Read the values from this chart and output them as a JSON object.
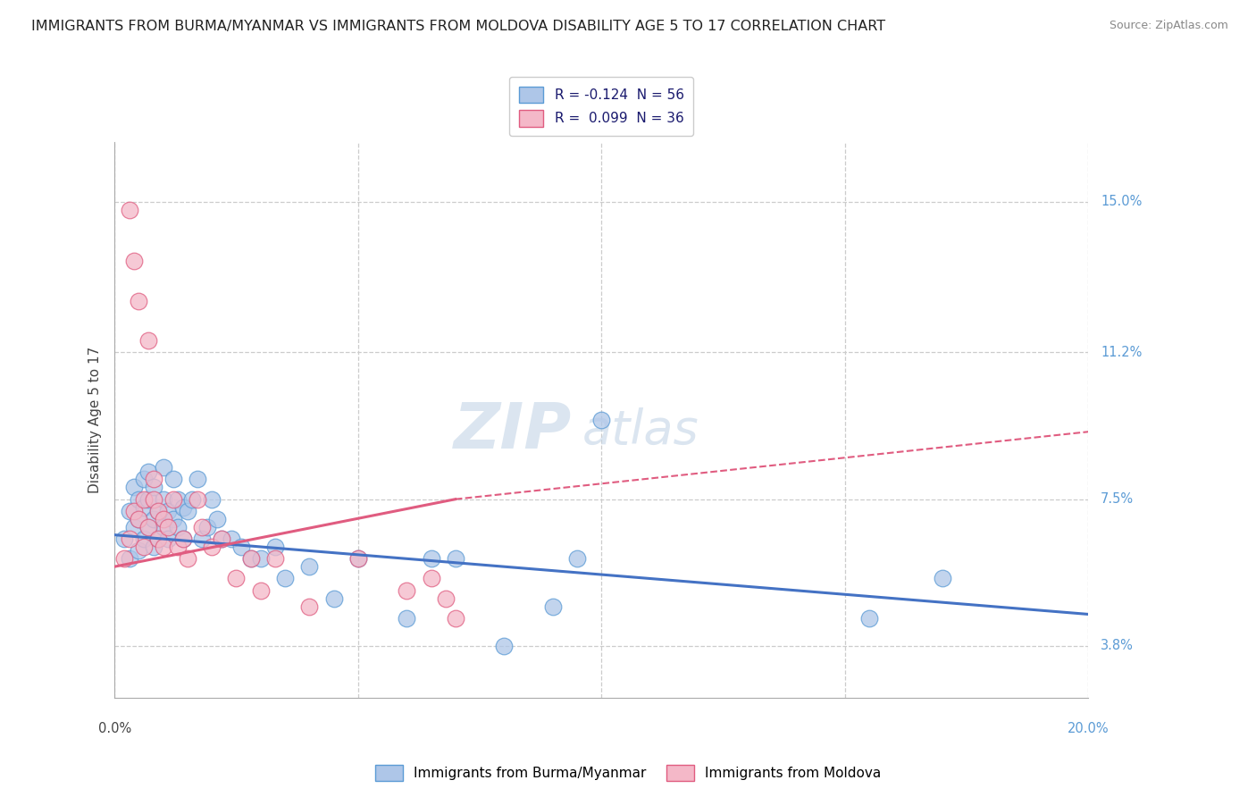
{
  "title": "IMMIGRANTS FROM BURMA/MYANMAR VS IMMIGRANTS FROM MOLDOVA DISABILITY AGE 5 TO 17 CORRELATION CHART",
  "source": "Source: ZipAtlas.com",
  "ylabel_label": "Disability Age 5 to 17",
  "yticks_pct": [
    3.8,
    7.5,
    11.2,
    15.0
  ],
  "xlim": [
    0.0,
    0.2
  ],
  "ylim_pct": [
    2.5,
    16.5
  ],
  "watermark_top": "ZIP",
  "watermark_bot": "atlas",
  "legend_blue_label": "R = -0.124  N = 56",
  "legend_pink_label": "R =  0.099  N = 36",
  "blue_face": "#aec6e8",
  "blue_edge": "#5b9bd5",
  "pink_face": "#f4b8c8",
  "pink_edge": "#e05c80",
  "blue_line": "#4472c4",
  "pink_line": "#e05c80",
  "grid_color": "#cccccc",
  "bg_color": "#ffffff",
  "watermark_color": "#c8d8e8",
  "title_fontsize": 11.5,
  "source_fontsize": 9,
  "legend_fontsize": 11,
  "ytick_fontsize": 10.5,
  "ylabel_fontsize": 11,
  "watermark_fontsize": 52,
  "burma_x": [
    0.002,
    0.003,
    0.003,
    0.004,
    0.004,
    0.005,
    0.005,
    0.005,
    0.006,
    0.006,
    0.006,
    0.007,
    0.007,
    0.007,
    0.008,
    0.008,
    0.008,
    0.009,
    0.009,
    0.01,
    0.01,
    0.01,
    0.011,
    0.011,
    0.012,
    0.012,
    0.013,
    0.013,
    0.014,
    0.014,
    0.015,
    0.016,
    0.017,
    0.018,
    0.019,
    0.02,
    0.021,
    0.022,
    0.024,
    0.026,
    0.028,
    0.03,
    0.033,
    0.035,
    0.04,
    0.045,
    0.05,
    0.06,
    0.065,
    0.07,
    0.08,
    0.09,
    0.095,
    0.1,
    0.155,
    0.17
  ],
  "burma_y": [
    0.065,
    0.06,
    0.072,
    0.068,
    0.078,
    0.062,
    0.07,
    0.075,
    0.065,
    0.073,
    0.08,
    0.068,
    0.075,
    0.082,
    0.063,
    0.07,
    0.078,
    0.065,
    0.072,
    0.068,
    0.075,
    0.083,
    0.065,
    0.072,
    0.08,
    0.07,
    0.068,
    0.075,
    0.065,
    0.073,
    0.072,
    0.075,
    0.08,
    0.065,
    0.068,
    0.075,
    0.07,
    0.065,
    0.065,
    0.063,
    0.06,
    0.06,
    0.063,
    0.055,
    0.058,
    0.05,
    0.06,
    0.045,
    0.06,
    0.06,
    0.038,
    0.048,
    0.06,
    0.095,
    0.045,
    0.055
  ],
  "moldova_x": [
    0.002,
    0.003,
    0.003,
    0.004,
    0.004,
    0.005,
    0.005,
    0.006,
    0.006,
    0.007,
    0.007,
    0.008,
    0.008,
    0.009,
    0.009,
    0.01,
    0.01,
    0.011,
    0.012,
    0.013,
    0.014,
    0.015,
    0.017,
    0.018,
    0.02,
    0.022,
    0.025,
    0.028,
    0.03,
    0.033,
    0.04,
    0.05,
    0.06,
    0.065,
    0.068,
    0.07
  ],
  "moldova_y": [
    0.06,
    0.148,
    0.065,
    0.135,
    0.072,
    0.125,
    0.07,
    0.063,
    0.075,
    0.115,
    0.068,
    0.075,
    0.08,
    0.065,
    0.072,
    0.07,
    0.063,
    0.068,
    0.075,
    0.063,
    0.065,
    0.06,
    0.075,
    0.068,
    0.063,
    0.065,
    0.055,
    0.06,
    0.052,
    0.06,
    0.048,
    0.06,
    0.052,
    0.055,
    0.05,
    0.045
  ]
}
